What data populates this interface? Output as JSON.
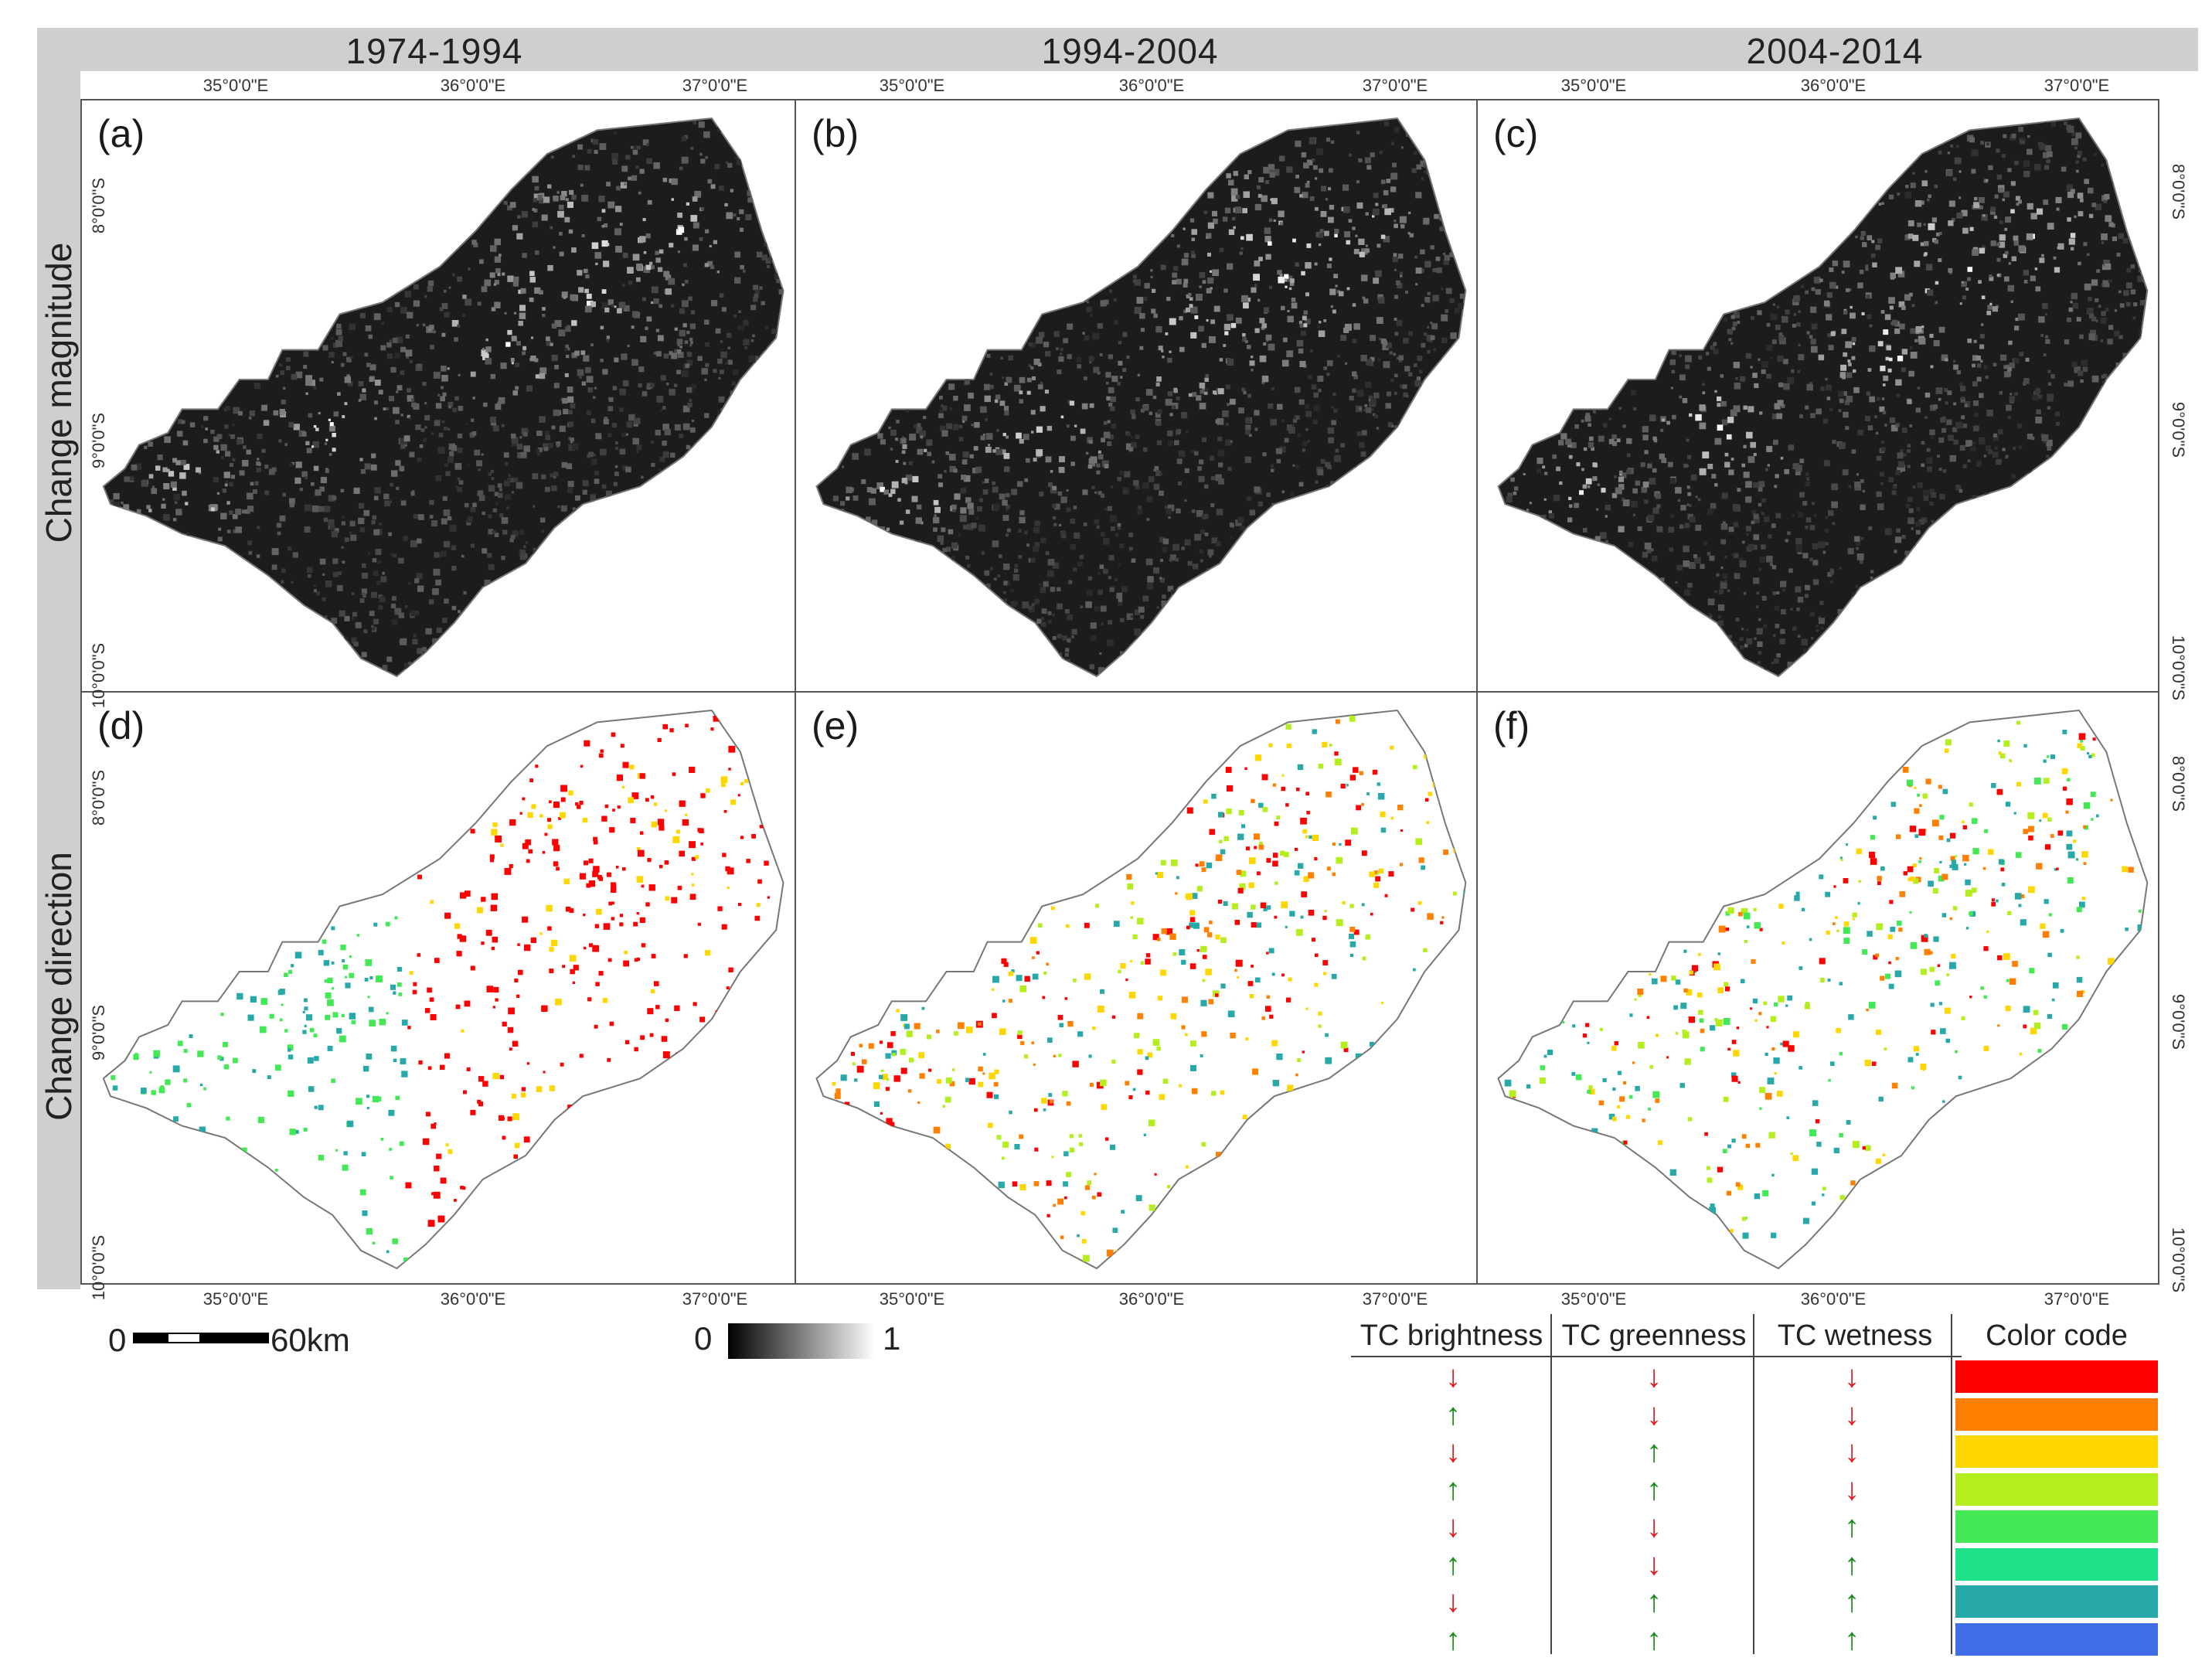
{
  "periods": [
    "1974-1994",
    "1994-2004",
    "2004-2014"
  ],
  "row_labels": [
    "Change magnitude",
    "Change direction"
  ],
  "panels": [
    {
      "label": "(a)",
      "kind": "magnitude"
    },
    {
      "label": "(b)",
      "kind": "magnitude"
    },
    {
      "label": "(c)",
      "kind": "magnitude"
    },
    {
      "label": "(d)",
      "kind": "direction"
    },
    {
      "label": "(e)",
      "kind": "direction"
    },
    {
      "label": "(f)",
      "kind": "direction"
    }
  ],
  "lon_ticks": [
    "35°0'0\"E",
    "36°0'0\"E",
    "37°0'0\"E"
  ],
  "lat_ticks": [
    "8°0'0\"S",
    "9°0'0\"S",
    "10°0'0\"S"
  ],
  "scale_bar": {
    "start": "0",
    "end": "60km"
  },
  "magnitude_scale": {
    "min": "0",
    "max": "1"
  },
  "legend": {
    "headers": [
      "TC brightness",
      "TC greenness",
      "TC wetness",
      "Color code"
    ],
    "rows": [
      {
        "brightness": "↓",
        "greenness": "↓",
        "wetness": "↓",
        "color": "#ff0000"
      },
      {
        "brightness": "↑",
        "greenness": "↓",
        "wetness": "↓",
        "color": "#ff7f00"
      },
      {
        "brightness": "↓",
        "greenness": "↑",
        "wetness": "↓",
        "color": "#ffd700"
      },
      {
        "brightness": "↑",
        "greenness": "↑",
        "wetness": "↓",
        "color": "#b5ee1e"
      },
      {
        "brightness": "↓",
        "greenness": "↓",
        "wetness": "↑",
        "color": "#43e855"
      },
      {
        "brightness": "↑",
        "greenness": "↓",
        "wetness": "↑",
        "color": "#1de28a"
      },
      {
        "brightness": "↓",
        "greenness": "↑",
        "wetness": "↑",
        "color": "#27a9a9"
      },
      {
        "brightness": "↑",
        "greenness": "↑",
        "wetness": "↑",
        "color": "#3f6ee6"
      }
    ]
  }
}
